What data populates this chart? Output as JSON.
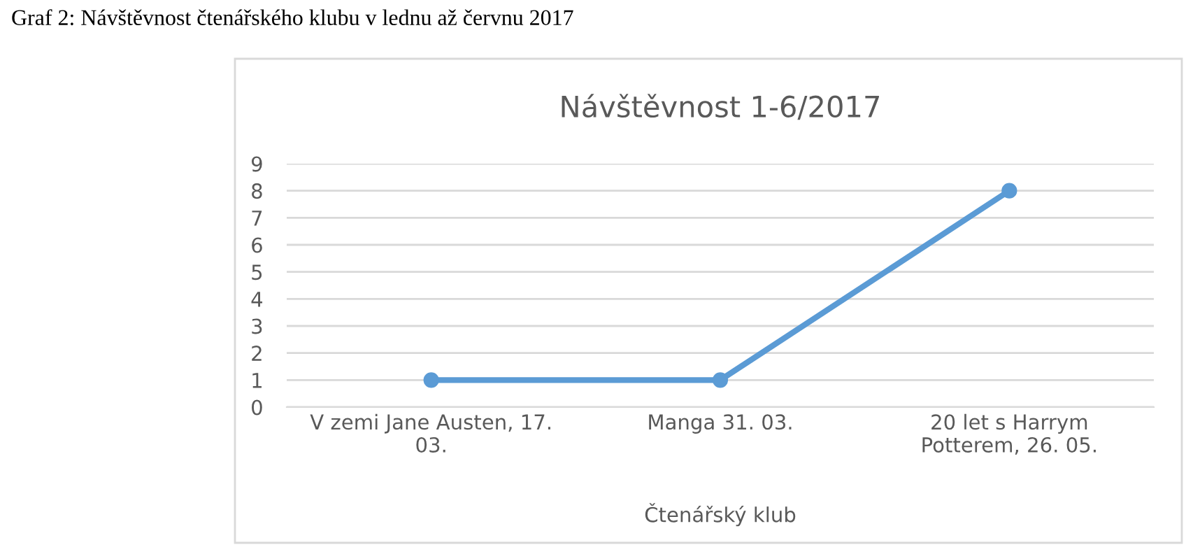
{
  "chart_data": {
    "type": "line",
    "title": "Návštěvnost 1-6/2017",
    "annotations": [
      "Graf 2: Návštěvnost čtenářského klubu v lednu až červnu 2017"
    ],
    "xlabel": "Čtenářský klub",
    "categories": [
      "V zemi Jane Austen, 17. 03.",
      "Manga 31. 03.",
      "20 let s Harrym Potterem, 26. 05."
    ],
    "series": [
      {
        "color": "#5b9bd5",
        "values": [
          1,
          1,
          8
        ]
      }
    ],
    "ylim": [
      0,
      9
    ],
    "yticks": [
      0,
      1,
      2,
      3,
      4,
      5,
      6,
      7,
      8,
      9
    ],
    "grid": "y",
    "marker": "circle",
    "line_style": "solid",
    "legend": false
  }
}
